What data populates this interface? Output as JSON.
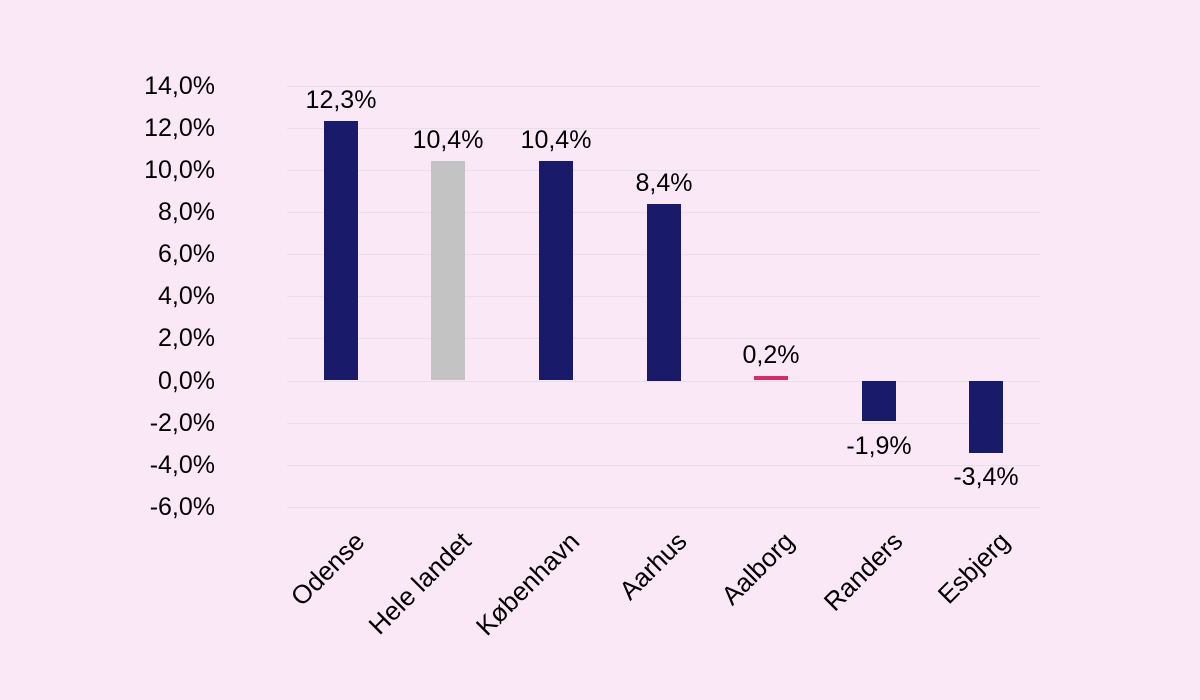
{
  "page": {
    "background_color": "#fbe8f6",
    "text_color": "#000000",
    "gridline_color": "#e9dfec"
  },
  "chart_data": {
    "type": "bar",
    "title": "",
    "xlabel": "",
    "ylabel": "",
    "categories": [
      "Odense",
      "Hele landet",
      "København",
      "Aarhus",
      "Aalborg",
      "Randers",
      "Esbjerg"
    ],
    "values": [
      12.3,
      10.4,
      10.4,
      8.4,
      0.2,
      -1.9,
      -3.4
    ],
    "value_labels": [
      "12,3%",
      "10,4%",
      "10,4%",
      "8,4%",
      "0,2%",
      "-1,9%",
      "-3,4%"
    ],
    "bar_colors": [
      "#1a1a6a",
      "#c3c3c3",
      "#1a1a6a",
      "#1a1a6a",
      "#d62a6e",
      "#1a1a6a",
      "#1a1a6a"
    ],
    "highlight_color": "#d62a6e",
    "default_bar_color": "#1a1a6a",
    "neutral_bar_color": "#c3c3c3",
    "ylim": [
      -6,
      14
    ],
    "ytick_step": 2,
    "yticks": [
      "14,0%",
      "12,0%",
      "10,0%",
      "8,0%",
      "6,0%",
      "4,0%",
      "2,0%",
      "0,0%",
      "-2,0%",
      "-4,0%",
      "-6,0%"
    ],
    "grid": true,
    "legend": "none",
    "x_labels_rotation_deg": -45
  }
}
